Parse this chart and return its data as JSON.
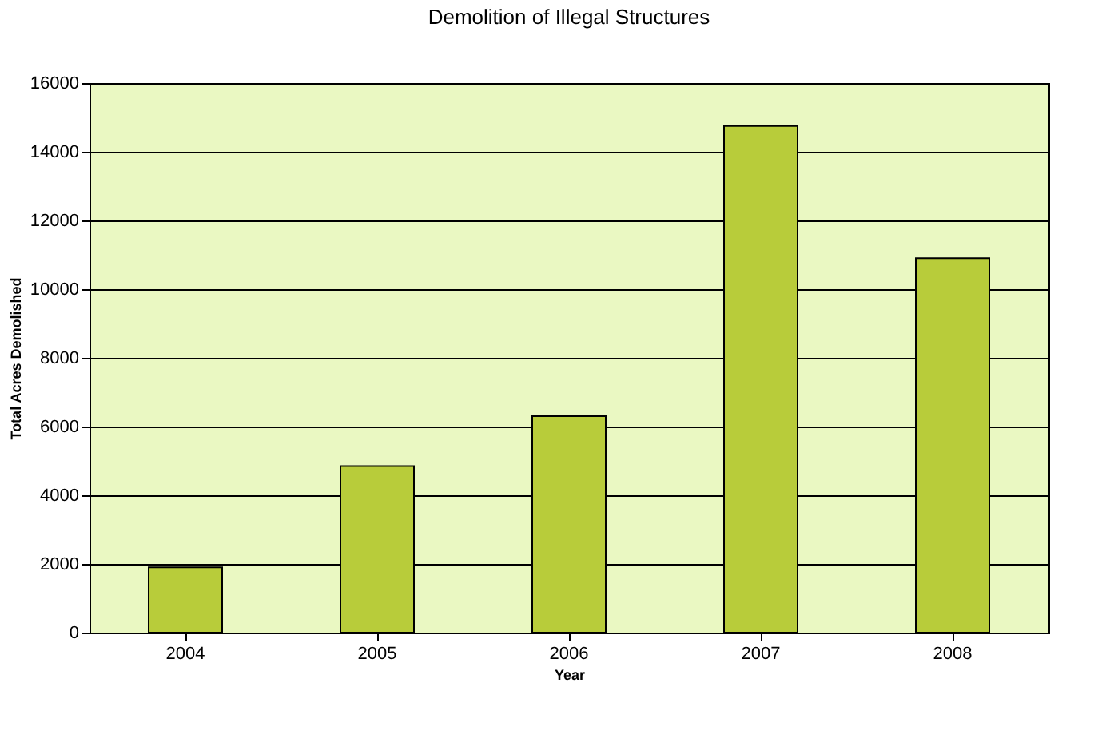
{
  "chart_data": {
    "type": "bar",
    "title": "Demolition of Illegal Structures",
    "xlabel": "Year",
    "ylabel": "Total Acres Demolished",
    "categories": [
      "2004",
      "2005",
      "2006",
      "2007",
      "2008"
    ],
    "values": [
      1900,
      4850,
      6300,
      14750,
      10900
    ],
    "color": "#b8cc3a",
    "ylim": [
      0,
      16000
    ],
    "yticks": [
      0,
      2000,
      4000,
      6000,
      8000,
      10000,
      12000,
      14000,
      16000
    ],
    "grid": "y"
  }
}
